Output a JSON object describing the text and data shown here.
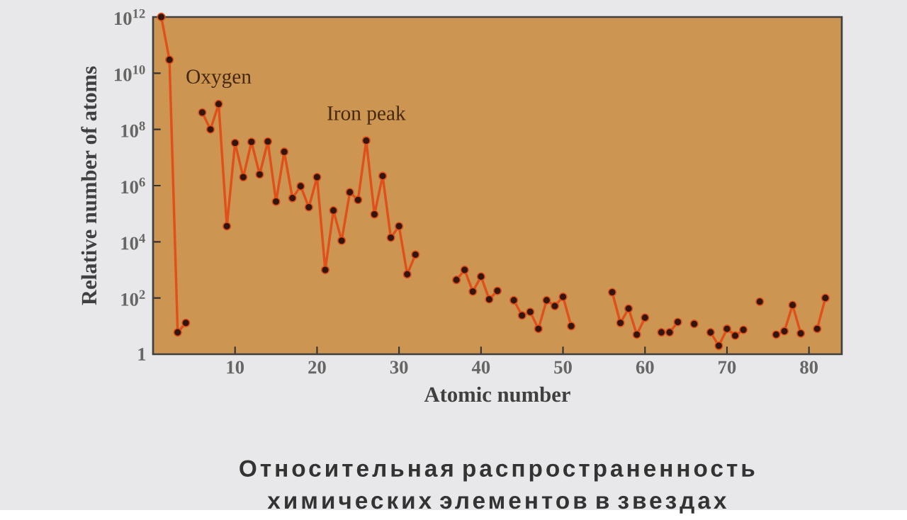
{
  "chart_data": {
    "type": "line",
    "xlabel": "Atomic number",
    "ylabel": "Relative number of atoms",
    "log": "y",
    "marker": "circle",
    "line_style": "solid",
    "xlim": [
      0,
      84
    ],
    "xticks": [
      10,
      20,
      30,
      40,
      50,
      60,
      70,
      80
    ],
    "ylim": [
      1,
      1000000000000.0
    ],
    "yticks": [
      1,
      {
        "value": 100,
        "label": "10$^{2}$"
      },
      {
        "value": 10000,
        "label": "10$^{4}$"
      },
      {
        "value": 1000000,
        "label": "10$^{6}$"
      },
      {
        "value": 100000000,
        "label": "10$^{8}$"
      },
      {
        "value": 10000000000,
        "label": "10$^{10}$"
      },
      {
        "value": 1000000000000,
        "label": "10$^{12}$"
      }
    ],
    "series": [
      {
        "color": "#e0501a",
        "x": [
          1,
          2,
          3,
          4,
          5,
          6,
          7,
          8,
          9,
          10,
          11,
          12,
          13,
          14,
          15,
          16,
          17,
          18,
          19,
          20,
          21,
          22,
          23,
          24,
          25,
          26,
          27,
          28,
          29,
          30,
          31,
          32,
          33,
          37,
          38,
          39,
          40,
          41,
          42,
          43,
          44,
          45,
          46,
          47,
          48,
          49,
          50,
          51,
          52,
          56,
          57,
          58,
          59,
          60,
          61,
          62,
          63,
          64,
          65,
          66,
          67,
          68,
          69,
          70,
          71,
          72,
          73,
          74,
          75,
          76,
          77,
          78,
          79,
          80,
          81,
          82
        ],
        "values": [
          1000000000000.0,
          30000000000.0,
          6,
          13,
          null,
          400000000.0,
          100000000.0,
          800000000.0,
          36000.0,
          33000000.0,
          2000000.0,
          36000000.0,
          2500000.0,
          37000000.0,
          270000.0,
          16000000.0,
          360000.0,
          950000.0,
          170000.0,
          2000000.0,
          1000,
          130000.0,
          11000.0,
          580000.0,
          310000.0,
          40000000.0,
          95000.0,
          2200000.0,
          14000.0,
          36000.0,
          700,
          3500,
          null,
          440,
          1000,
          170,
          580,
          90,
          180,
          null,
          83,
          24,
          32,
          8,
          83,
          52,
          110,
          10,
          null,
          160,
          13,
          42,
          5,
          20,
          null,
          6,
          6,
          14,
          null,
          12,
          null,
          6,
          2,
          8,
          4.6,
          7.4,
          null,
          74,
          null,
          5,
          6.6,
          56,
          5.5,
          null,
          8,
          100
        ]
      }
    ],
    "annotations": [
      {
        "text": "Oxygen",
        "x": 8,
        "y": 800000000.0
      },
      {
        "text": "Iron peak",
        "x": 26,
        "y": 40000000.0
      },
      "Относительная распространенность химических элементов в звездах"
    ]
  }
}
